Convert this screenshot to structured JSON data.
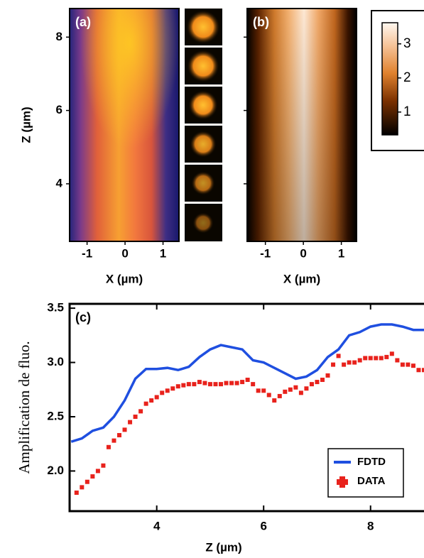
{
  "chart_data": [
    {
      "type": "image",
      "label": "(a)",
      "xlabel": "X (µm)",
      "ylabel": "Z (µm)",
      "xlim": [
        -1.46,
        1.42
      ],
      "ylim": [
        2.43,
        8.78
      ],
      "xticks": [
        -1,
        0,
        1
      ],
      "yticks": [
        4,
        6,
        8
      ]
    },
    {
      "type": "image",
      "label": "(b)",
      "xlabel": "X (µm)",
      "xlim": [
        -1.48,
        1.4
      ],
      "ylim": [
        2.43,
        8.78
      ],
      "xticks": [
        -1,
        0,
        1
      ]
    },
    {
      "type": "colorbar",
      "ylim": [
        0.33,
        3.62
      ],
      "yticks": [
        1,
        2,
        3
      ]
    },
    {
      "type": "line",
      "label": "(c)",
      "xlabel": "Z (µm)",
      "ylabel": "Amplification de fluo.",
      "xlim": [
        2.37,
        9.0
      ],
      "ylim": [
        1.63,
        3.54
      ],
      "xticks": [
        4,
        6,
        8
      ],
      "yticks": [
        {
          "value": 2,
          "label": "2.0"
        },
        2.5,
        {
          "value": 3,
          "label": "3.0"
        },
        3.5
      ],
      "legend": "lower right",
      "series": [
        {
          "name": "FDTD",
          "color": "#1f4fe0",
          "style": "line",
          "x": [
            2.4,
            2.6,
            2.8,
            3.0,
            3.2,
            3.4,
            3.6,
            3.8,
            4.0,
            4.2,
            4.4,
            4.6,
            4.8,
            5.0,
            5.2,
            5.4,
            5.6,
            5.8,
            6.0,
            6.2,
            6.4,
            6.6,
            6.8,
            7.0,
            7.2,
            7.4,
            7.6,
            7.8,
            8.0,
            8.2,
            8.4,
            8.6,
            8.8,
            9.0
          ],
          "values": [
            2.27,
            2.3,
            2.37,
            2.4,
            2.5,
            2.65,
            2.85,
            2.94,
            2.94,
            2.95,
            2.93,
            2.96,
            3.05,
            3.12,
            3.16,
            3.14,
            3.12,
            3.02,
            3.0,
            2.95,
            2.9,
            2.85,
            2.87,
            2.93,
            3.05,
            3.12,
            3.25,
            3.28,
            3.33,
            3.35,
            3.35,
            3.33,
            3.3,
            3.3
          ]
        },
        {
          "name": "DATA",
          "color": "#e8221c",
          "style": "markers",
          "x": [
            2.5,
            2.6,
            2.7,
            2.8,
            2.9,
            3.0,
            3.1,
            3.2,
            3.3,
            3.4,
            3.5,
            3.6,
            3.7,
            3.8,
            3.9,
            4.0,
            4.1,
            4.2,
            4.3,
            4.4,
            4.5,
            4.6,
            4.7,
            4.8,
            4.9,
            5.0,
            5.1,
            5.2,
            5.3,
            5.4,
            5.5,
            5.6,
            5.7,
            5.8,
            5.9,
            6.0,
            6.1,
            6.2,
            6.3,
            6.4,
            6.5,
            6.6,
            6.7,
            6.8,
            6.9,
            7.0,
            7.1,
            7.2,
            7.3,
            7.4,
            7.5,
            7.6,
            7.7,
            7.8,
            7.9,
            8.0,
            8.1,
            8.2,
            8.3,
            8.4,
            8.5,
            8.6,
            8.7,
            8.8,
            8.9,
            9.0
          ],
          "values": [
            1.8,
            1.85,
            1.9,
            1.95,
            2.0,
            2.05,
            2.22,
            2.28,
            2.33,
            2.38,
            2.45,
            2.5,
            2.55,
            2.62,
            2.65,
            2.68,
            2.72,
            2.74,
            2.76,
            2.78,
            2.79,
            2.8,
            2.8,
            2.82,
            2.81,
            2.8,
            2.8,
            2.8,
            2.81,
            2.81,
            2.81,
            2.82,
            2.84,
            2.8,
            2.74,
            2.74,
            2.7,
            2.65,
            2.69,
            2.73,
            2.75,
            2.77,
            2.72,
            2.76,
            2.8,
            2.82,
            2.84,
            2.88,
            2.98,
            3.06,
            2.98,
            3.0,
            3.0,
            3.02,
            3.04,
            3.04,
            3.04,
            3.04,
            3.05,
            3.08,
            3.02,
            2.98,
            2.98,
            2.97,
            2.93,
            2.93
          ]
        }
      ]
    }
  ]
}
